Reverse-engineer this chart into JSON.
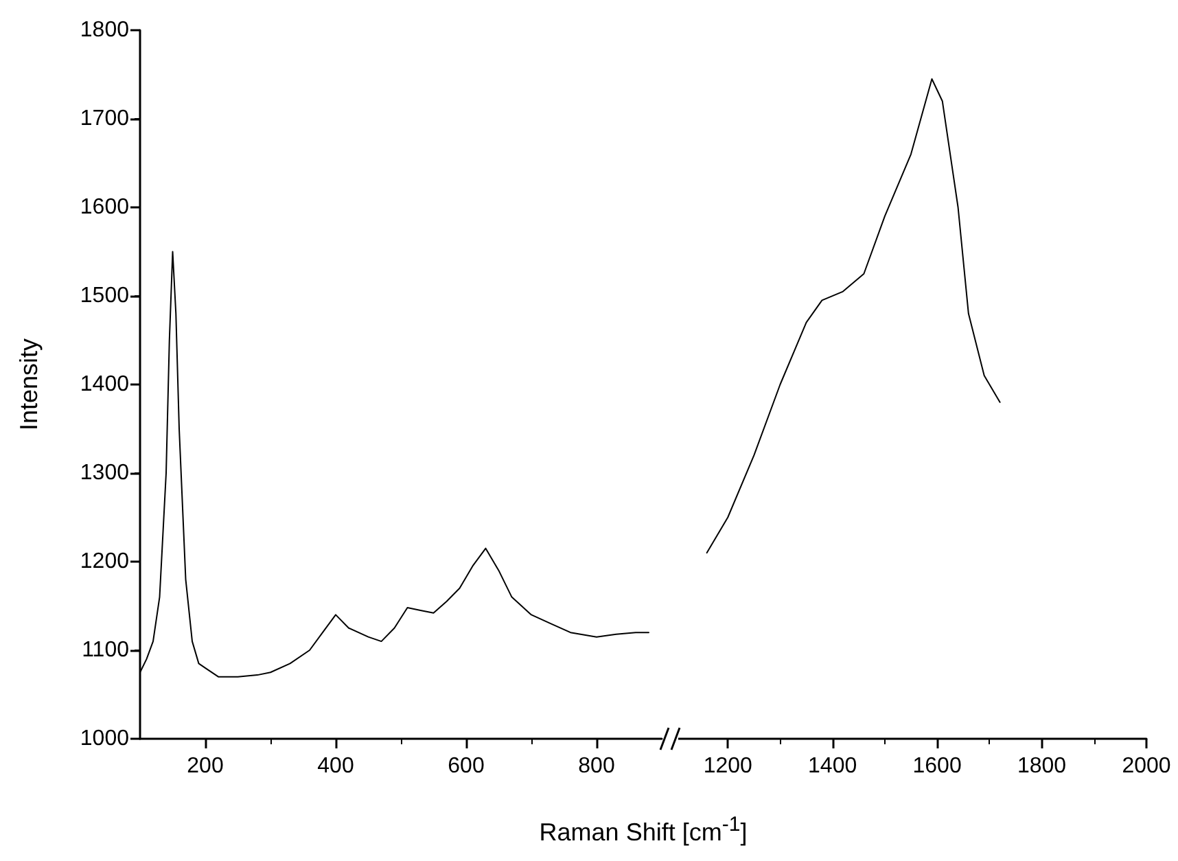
{
  "chart_data": [
    {
      "type": "line",
      "ylabel": "Intensity",
      "xlabel": "Raman Shift [cm$^{-1}$]",
      "xlim": [
        100,
        900
      ],
      "xticks": [
        200,
        400,
        600,
        800
      ],
      "ylim": [
        1000,
        1800
      ],
      "yticks": [
        1000,
        1100,
        1200,
        1300,
        1400,
        1500,
        1600,
        1700,
        1800
      ],
      "grid": false,
      "series": [
        {
          "color": "#000000",
          "x": [
            100,
            110,
            120,
            130,
            140,
            145,
            150,
            155,
            160,
            170,
            180,
            190,
            200,
            220,
            250,
            280,
            300,
            330,
            360,
            380,
            400,
            420,
            450,
            470,
            490,
            510,
            530,
            550,
            570,
            590,
            610,
            630,
            650,
            670,
            700,
            730,
            760,
            800,
            830,
            860,
            880
          ],
          "values": [
            1075,
            1090,
            1110,
            1160,
            1300,
            1450,
            1550,
            1480,
            1350,
            1180,
            1110,
            1085,
            1080,
            1070,
            1070,
            1072,
            1075,
            1085,
            1100,
            1120,
            1140,
            1125,
            1115,
            1110,
            1125,
            1148,
            1145,
            1142,
            1155,
            1170,
            1195,
            1215,
            1190,
            1160,
            1140,
            1130,
            1120,
            1115,
            1118,
            1120,
            1120
          ]
        }
      ]
    },
    {
      "type": "line",
      "xlim": [
        1100,
        2000
      ],
      "xticks": [
        1200,
        1400,
        1600,
        1800,
        2000
      ],
      "ylim": [
        1000,
        1800
      ],
      "yticks": [
        1000,
        1100,
        1200,
        1300,
        1400,
        1500,
        1600,
        1700,
        1800
      ],
      "tick_labels": "x",
      "grid": false,
      "series": [
        {
          "color": "#000000",
          "x": [
            1160,
            1200,
            1250,
            1300,
            1350,
            1380,
            1420,
            1460,
            1500,
            1550,
            1590,
            1610,
            1640,
            1660,
            1690,
            1720
          ],
          "values": [
            1210,
            1250,
            1320,
            1400,
            1470,
            1495,
            1505,
            1525,
            1590,
            1660,
            1745,
            1720,
            1600,
            1480,
            1410,
            1380
          ]
        }
      ]
    }
  ]
}
